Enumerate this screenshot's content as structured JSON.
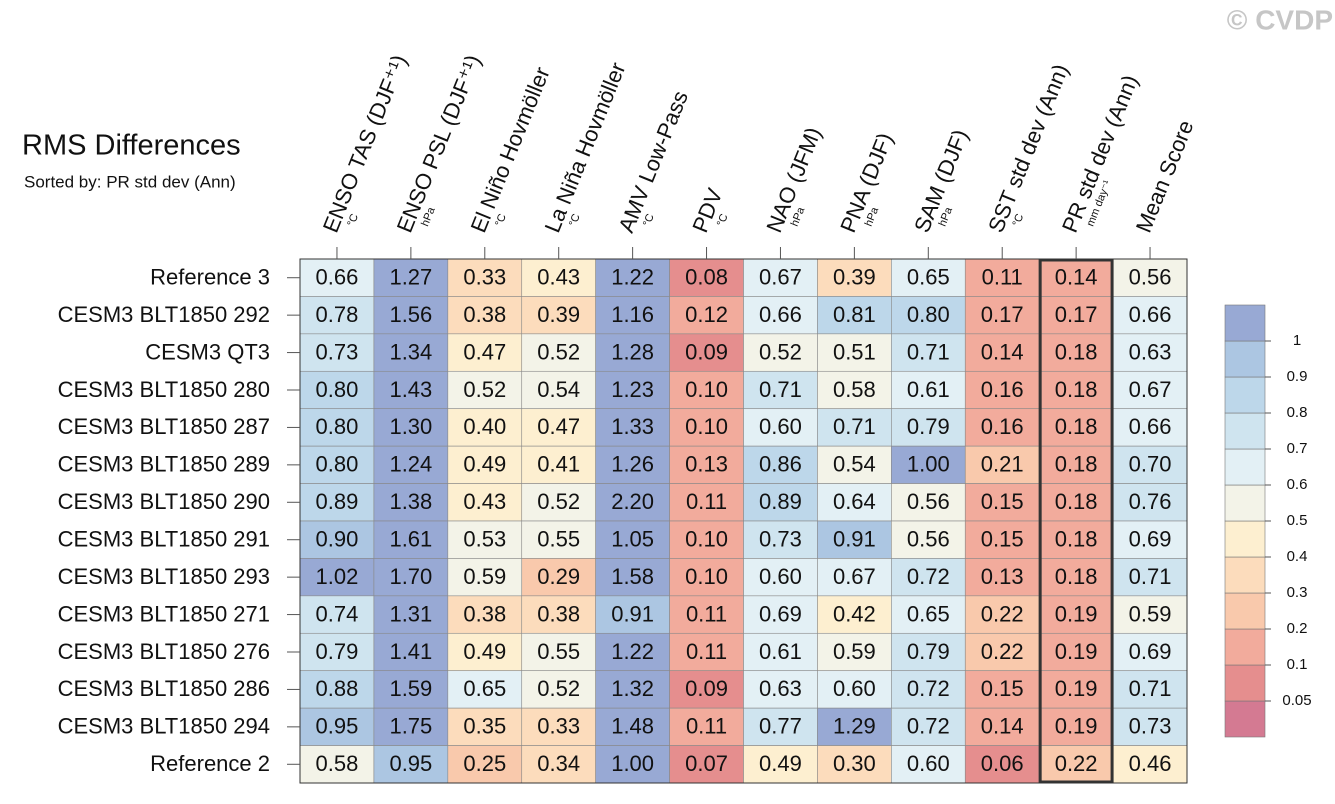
{
  "chart_data": {
    "type": "heatmap",
    "title": "RMS Differences",
    "subtitle": "Sorted by: PR std dev (Ann)",
    "watermark": "© CVDP",
    "columns": [
      {
        "name": "ENSO TAS (DJF⁺¹)",
        "unit": "°C"
      },
      {
        "name": "ENSO PSL (DJF⁺¹)",
        "unit": "hPa"
      },
      {
        "name": "El Niño Hovmöller",
        "unit": "°C"
      },
      {
        "name": "La Niña Hovmöller",
        "unit": "°C"
      },
      {
        "name": "AMV Low-Pass",
        "unit": "°C"
      },
      {
        "name": "PDV",
        "unit": "°C"
      },
      {
        "name": "NAO (JFM)",
        "unit": "hPa"
      },
      {
        "name": "PNA (DJF)",
        "unit": "hPa"
      },
      {
        "name": "SAM (DJF)",
        "unit": "hPa"
      },
      {
        "name": "SST std dev (Ann)",
        "unit": "°C"
      },
      {
        "name": "PR std dev (Ann)",
        "unit": "mm day⁻¹"
      },
      {
        "name": "Mean Score"
      }
    ],
    "rows": [
      "Reference 3",
      "CESM3 BLT1850 292",
      "CESM3 QT3",
      "CESM3 BLT1850 280",
      "CESM3 BLT1850 287",
      "CESM3 BLT1850 289",
      "CESM3 BLT1850 290",
      "CESM3 BLT1850 291",
      "CESM3 BLT1850 293",
      "CESM3 BLT1850 271",
      "CESM3 BLT1850 276",
      "CESM3 BLT1850 286",
      "CESM3 BLT1850 294",
      "Reference 2"
    ],
    "values": [
      [
        0.66,
        1.27,
        0.33,
        0.43,
        1.22,
        0.08,
        0.67,
        0.39,
        0.65,
        0.11,
        0.14,
        0.56
      ],
      [
        0.78,
        1.56,
        0.38,
        0.39,
        1.16,
        0.12,
        0.66,
        0.81,
        0.8,
        0.17,
        0.17,
        0.66
      ],
      [
        0.73,
        1.34,
        0.47,
        0.52,
        1.28,
        0.09,
        0.52,
        0.51,
        0.71,
        0.14,
        0.18,
        0.63
      ],
      [
        0.8,
        1.43,
        0.52,
        0.54,
        1.23,
        0.1,
        0.71,
        0.58,
        0.61,
        0.16,
        0.18,
        0.67
      ],
      [
        0.8,
        1.3,
        0.4,
        0.47,
        1.33,
        0.1,
        0.6,
        0.71,
        0.79,
        0.16,
        0.18,
        0.66
      ],
      [
        0.8,
        1.24,
        0.49,
        0.41,
        1.26,
        0.13,
        0.86,
        0.54,
        1.0,
        0.21,
        0.18,
        0.7
      ],
      [
        0.89,
        1.38,
        0.43,
        0.52,
        2.2,
        0.11,
        0.89,
        0.64,
        0.56,
        0.15,
        0.18,
        0.76
      ],
      [
        0.9,
        1.61,
        0.53,
        0.55,
        1.05,
        0.1,
        0.73,
        0.91,
        0.56,
        0.15,
        0.18,
        0.69
      ],
      [
        1.02,
        1.7,
        0.59,
        0.29,
        1.58,
        0.1,
        0.6,
        0.67,
        0.72,
        0.13,
        0.18,
        0.71
      ],
      [
        0.74,
        1.31,
        0.38,
        0.38,
        0.91,
        0.11,
        0.69,
        0.42,
        0.65,
        0.22,
        0.19,
        0.59
      ],
      [
        0.79,
        1.41,
        0.49,
        0.55,
        1.22,
        0.11,
        0.61,
        0.59,
        0.79,
        0.22,
        0.19,
        0.69
      ],
      [
        0.88,
        1.59,
        0.65,
        0.52,
        1.32,
        0.09,
        0.63,
        0.6,
        0.72,
        0.15,
        0.19,
        0.71
      ],
      [
        0.95,
        1.75,
        0.35,
        0.33,
        1.48,
        0.11,
        0.77,
        1.29,
        0.72,
        0.14,
        0.19,
        0.73
      ],
      [
        0.58,
        0.95,
        0.25,
        0.34,
        1.0,
        0.07,
        0.49,
        0.3,
        0.6,
        0.06,
        0.22,
        0.46
      ]
    ],
    "value_labels": [
      [
        "0.66",
        "1.27",
        "0.33",
        "0.43",
        "1.22",
        "0.08",
        "0.67",
        "0.39",
        "0.65",
        "0.11",
        "0.14",
        "0.56"
      ],
      [
        "0.78",
        "1.56",
        "0.38",
        "0.39",
        "1.16",
        "0.12",
        "0.66",
        "0.81",
        "0.80",
        "0.17",
        "0.17",
        "0.66"
      ],
      [
        "0.73",
        "1.34",
        "0.47",
        "0.52",
        "1.28",
        "0.09",
        "0.52",
        "0.51",
        "0.71",
        "0.14",
        "0.18",
        "0.63"
      ],
      [
        "0.80",
        "1.43",
        "0.52",
        "0.54",
        "1.23",
        "0.10",
        "0.71",
        "0.58",
        "0.61",
        "0.16",
        "0.18",
        "0.67"
      ],
      [
        "0.80",
        "1.30",
        "0.40",
        "0.47",
        "1.33",
        "0.10",
        "0.60",
        "0.71",
        "0.79",
        "0.16",
        "0.18",
        "0.66"
      ],
      [
        "0.80",
        "1.24",
        "0.49",
        "0.41",
        "1.26",
        "0.13",
        "0.86",
        "0.54",
        "1.00",
        "0.21",
        "0.18",
        "0.70"
      ],
      [
        "0.89",
        "1.38",
        "0.43",
        "0.52",
        "2.20",
        "0.11",
        "0.89",
        "0.64",
        "0.56",
        "0.15",
        "0.18",
        "0.76"
      ],
      [
        "0.90",
        "1.61",
        "0.53",
        "0.55",
        "1.05",
        "0.10",
        "0.73",
        "0.91",
        "0.56",
        "0.15",
        "0.18",
        "0.69"
      ],
      [
        "1.02",
        "1.70",
        "0.59",
        "0.29",
        "1.58",
        "0.10",
        "0.60",
        "0.67",
        "0.72",
        "0.13",
        "0.18",
        "0.71"
      ],
      [
        "0.74",
        "1.31",
        "0.38",
        "0.38",
        "0.91",
        "0.11",
        "0.69",
        "0.42",
        "0.65",
        "0.22",
        "0.19",
        "0.59"
      ],
      [
        "0.79",
        "1.41",
        "0.49",
        "0.55",
        "1.22",
        "0.11",
        "0.61",
        "0.59",
        "0.79",
        "0.22",
        "0.19",
        "0.69"
      ],
      [
        "0.88",
        "1.59",
        "0.65",
        "0.52",
        "1.32",
        "0.09",
        "0.63",
        "0.60",
        "0.72",
        "0.15",
        "0.19",
        "0.71"
      ],
      [
        "0.95",
        "1.75",
        "0.35",
        "0.33",
        "1.48",
        "0.11",
        "0.77",
        "1.29",
        "0.72",
        "0.14",
        "0.19",
        "0.73"
      ],
      [
        "0.58",
        "0.95",
        "0.25",
        "0.34",
        "1.00",
        "0.07",
        "0.49",
        "0.30",
        "0.60",
        "0.06",
        "0.22",
        "0.46"
      ]
    ],
    "colorbar_levels": [
      0.05,
      0.1,
      0.2,
      0.3,
      0.4,
      0.5,
      0.6,
      0.7,
      0.8,
      0.9,
      1
    ],
    "colors": [
      "#d47a92",
      "#e58e8e",
      "#f2ab9c",
      "#f9c9ac",
      "#fcdcbc",
      "#fdefd0",
      "#f3f3e8",
      "#e3f0f5",
      "#cfe4ef",
      "#bdd7ea",
      "#acc6e2",
      "#98a9d4"
    ],
    "highlight_column": 10
  }
}
